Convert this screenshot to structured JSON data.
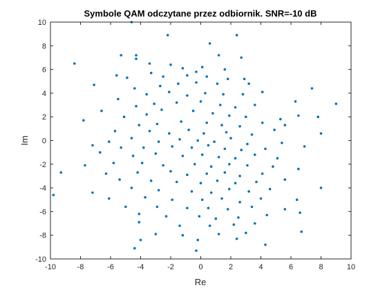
{
  "chart_data": {
    "type": "scatter",
    "title": "Symbole QAM odczytane przez odbiornik. SNR=-10 dB",
    "xlabel": "Re",
    "ylabel": "Im",
    "xlim": [
      -10,
      10
    ],
    "ylim": [
      -10,
      10
    ],
    "xticks": [
      -10,
      -8,
      -6,
      -4,
      -2,
      0,
      2,
      4,
      6,
      8,
      10
    ],
    "yticks": [
      -10,
      -8,
      -6,
      -4,
      -2,
      0,
      2,
      4,
      6,
      8,
      10
    ],
    "grid": false,
    "legend": "none",
    "marker_color": "#0072BD",
    "points": [
      [
        -4.6,
        10.0
      ],
      [
        2.4,
        8.9
      ],
      [
        -2.2,
        8.9
      ],
      [
        0.6,
        8.2
      ],
      [
        -5.3,
        7.2
      ],
      [
        -4.3,
        7.2
      ],
      [
        1.2,
        7.2
      ],
      [
        2.7,
        7.0
      ],
      [
        -8.4,
        6.5
      ],
      [
        -3.4,
        6.5
      ],
      [
        -4.3,
        6.9
      ],
      [
        -2.0,
        6.4
      ],
      [
        0.1,
        6.2
      ],
      [
        -1.2,
        6.1
      ],
      [
        1.6,
        6.0
      ],
      [
        -0.3,
        5.8
      ],
      [
        -5.6,
        5.5
      ],
      [
        -3.3,
        5.7
      ],
      [
        -4.9,
        5.3
      ],
      [
        -2.5,
        5.4
      ],
      [
        -0.9,
        5.5
      ],
      [
        0.4,
        5.4
      ],
      [
        1.8,
        5.2
      ],
      [
        2.9,
        5.2
      ],
      [
        -7.1,
        4.7
      ],
      [
        -1.5,
        4.8
      ],
      [
        -0.3,
        4.9
      ],
      [
        1.1,
        4.8
      ],
      [
        -2.7,
        4.6
      ],
      [
        3.2,
        4.8
      ],
      [
        -4.4,
        4.4
      ],
      [
        7.4,
        4.4
      ],
      [
        -5.5,
        3.5
      ],
      [
        -3.6,
        3.9
      ],
      [
        -2.1,
        4.1
      ],
      [
        -0.9,
        3.8
      ],
      [
        0.3,
        4.0
      ],
      [
        1.5,
        3.9
      ],
      [
        2.8,
        3.9
      ],
      [
        4.1,
        4.1
      ],
      [
        6.3,
        3.3
      ],
      [
        -6.6,
        2.5
      ],
      [
        -4.3,
        2.9
      ],
      [
        -3.1,
        3.1
      ],
      [
        -1.6,
        3.2
      ],
      [
        0.0,
        3.3
      ],
      [
        1.3,
        3.0
      ],
      [
        2.3,
        2.8
      ],
      [
        3.6,
        3.0
      ],
      [
        9.0,
        3.1
      ],
      [
        -5.1,
        2.0
      ],
      [
        -3.6,
        2.2
      ],
      [
        -2.6,
        2.6
      ],
      [
        -0.5,
        2.5
      ],
      [
        0.8,
        2.3
      ],
      [
        1.9,
        2.1
      ],
      [
        3.0,
        2.0
      ],
      [
        5.3,
        1.8
      ],
      [
        6.5,
        2.1
      ],
      [
        7.8,
        2.0
      ],
      [
        -7.8,
        1.7
      ],
      [
        -4.1,
        1.3
      ],
      [
        -2.9,
        1.4
      ],
      [
        -1.3,
        1.6
      ],
      [
        0.4,
        1.5
      ],
      [
        1.4,
        1.3
      ],
      [
        2.6,
        1.2
      ],
      [
        4.1,
        1.5
      ],
      [
        5.6,
        1.3
      ],
      [
        -5.7,
        0.8
      ],
      [
        -3.4,
        0.8
      ],
      [
        -2.1,
        0.6
      ],
      [
        -0.8,
        0.9
      ],
      [
        0.2,
        0.6
      ],
      [
        1.7,
        0.7
      ],
      [
        3.4,
        0.5
      ],
      [
        4.9,
        0.9
      ],
      [
        8.0,
        0.6
      ],
      [
        -6.1,
        -0.1
      ],
      [
        -4.6,
        0.2
      ],
      [
        -2.8,
        -0.1
      ],
      [
        -1.4,
        0.1
      ],
      [
        -0.2,
        0.0
      ],
      [
        0.9,
        -0.1
      ],
      [
        2.0,
        0.2
      ],
      [
        3.1,
        -0.3
      ],
      [
        5.4,
        -0.2
      ],
      [
        -7.2,
        -0.4
      ],
      [
        -5.3,
        -0.6
      ],
      [
        -3.8,
        -0.6
      ],
      [
        -1.9,
        -0.5
      ],
      [
        -0.6,
        -0.6
      ],
      [
        0.5,
        -0.4
      ],
      [
        1.6,
        -0.7
      ],
      [
        2.7,
        -0.8
      ],
      [
        4.3,
        -0.7
      ],
      [
        6.9,
        -0.5
      ],
      [
        -6.7,
        -1.0
      ],
      [
        -4.5,
        -1.3
      ],
      [
        -3.0,
        -1.1
      ],
      [
        -1.2,
        -1.3
      ],
      [
        0.1,
        -1.2
      ],
      [
        1.2,
        -1.4
      ],
      [
        2.3,
        -1.5
      ],
      [
        3.6,
        -1.2
      ],
      [
        5.1,
        -1.5
      ],
      [
        -7.7,
        -2.1
      ],
      [
        -5.8,
        -1.9
      ],
      [
        -3.9,
        -1.9
      ],
      [
        -2.5,
        -2.1
      ],
      [
        -0.4,
        -2.0
      ],
      [
        0.7,
        -2.2
      ],
      [
        1.9,
        -2.0
      ],
      [
        3.1,
        -2.1
      ],
      [
        4.8,
        -2.2
      ],
      [
        -9.3,
        -2.7
      ],
      [
        -6.3,
        -2.8
      ],
      [
        -4.2,
        -2.7
      ],
      [
        -2.0,
        -2.6
      ],
      [
        -0.9,
        -2.9
      ],
      [
        0.4,
        -2.8
      ],
      [
        1.6,
        -2.7
      ],
      [
        2.6,
        -3.0
      ],
      [
        4.1,
        -2.8
      ],
      [
        6.5,
        -2.4
      ],
      [
        -5.4,
        -3.3
      ],
      [
        -3.3,
        -3.4
      ],
      [
        -1.6,
        -3.5
      ],
      [
        0.0,
        -3.6
      ],
      [
        1.1,
        -3.4
      ],
      [
        2.3,
        -3.6
      ],
      [
        3.7,
        -3.5
      ],
      [
        5.6,
        -3.3
      ],
      [
        -7.2,
        -4.4
      ],
      [
        -4.6,
        -4.0
      ],
      [
        -2.8,
        -4.2
      ],
      [
        -0.6,
        -4.3
      ],
      [
        0.7,
        -4.4
      ],
      [
        1.9,
        -4.1
      ],
      [
        3.2,
        -4.3
      ],
      [
        4.6,
        -4.1
      ],
      [
        8.0,
        -4.0
      ],
      [
        -6.1,
        -4.9
      ],
      [
        -3.7,
        -4.8
      ],
      [
        -1.9,
        -5.0
      ],
      [
        0.1,
        -5.0
      ],
      [
        1.4,
        -4.9
      ],
      [
        2.6,
        -5.2
      ],
      [
        4.0,
        -4.9
      ],
      [
        6.4,
        -5.0
      ],
      [
        -5.0,
        -5.6
      ],
      [
        -2.9,
        -5.6
      ],
      [
        -0.9,
        -5.7
      ],
      [
        0.5,
        -5.7
      ],
      [
        1.8,
        -5.8
      ],
      [
        3.4,
        -5.6
      ],
      [
        5.6,
        -5.8
      ],
      [
        -9.8,
        -4.6
      ],
      [
        -4.1,
        -6.2
      ],
      [
        -2.3,
        -6.4
      ],
      [
        -0.1,
        -6.4
      ],
      [
        1.0,
        -6.6
      ],
      [
        2.5,
        -6.5
      ],
      [
        4.4,
        -6.3
      ],
      [
        6.6,
        -6.1
      ],
      [
        -4.1,
        -6.9
      ],
      [
        -1.4,
        -7.2
      ],
      [
        0.6,
        -7.2
      ],
      [
        2.2,
        -7.1
      ],
      [
        3.6,
        -7.0
      ],
      [
        6.7,
        -7.7
      ],
      [
        -3.0,
        -7.9
      ],
      [
        -1.2,
        -8.0
      ],
      [
        1.2,
        -7.9
      ],
      [
        3.0,
        -7.8
      ],
      [
        -4.0,
        -8.4
      ],
      [
        -0.2,
        -8.4
      ],
      [
        2.4,
        -8.3
      ],
      [
        -4.4,
        -9.1
      ],
      [
        -0.3,
        -9.3
      ],
      [
        4.3,
        -8.8
      ]
    ]
  }
}
